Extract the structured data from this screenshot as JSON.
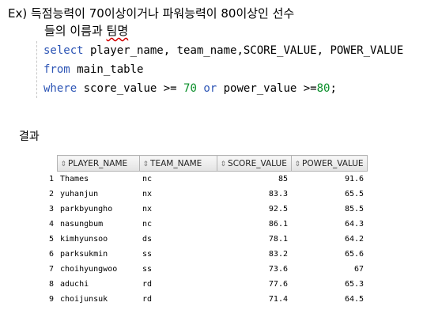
{
  "title": {
    "line1": "Ex) 득점능력이 70이상이거나 파워능력이 80이상인 선수",
    "line2_pre": "들의 이름과 ",
    "line2_underlined": "팀명"
  },
  "query": {
    "select_kw": "select",
    "select_cols": " player_name, team_name,SCORE_VALUE, POWER_VALUE",
    "from_kw": "from",
    "from_table": " main_table",
    "where_kw": "where",
    "where_part1": " score_value >= ",
    "where_num1": "70",
    "or_kw": "or",
    "where_part2": " power_value >=",
    "where_num2": "80",
    "where_end": ";"
  },
  "result_label": "결과",
  "table": {
    "sort_icon": "sort-icon",
    "columns": [
      "PLAYER_NAME",
      "TEAM_NAME",
      "SCORE_VALUE",
      "POWER_VALUE"
    ],
    "rows": [
      {
        "n": "1",
        "player": "Thames",
        "team": "nc",
        "score": "85",
        "power": "91.6"
      },
      {
        "n": "2",
        "player": "yuhanjun",
        "team": "nx",
        "score": "83.3",
        "power": "65.5"
      },
      {
        "n": "3",
        "player": "parkbyungho",
        "team": "nx",
        "score": "92.5",
        "power": "85.5"
      },
      {
        "n": "4",
        "player": "nasungbum",
        "team": "nc",
        "score": "86.1",
        "power": "64.3"
      },
      {
        "n": "5",
        "player": "kimhyunsoo",
        "team": "ds",
        "score": "78.1",
        "power": "64.2"
      },
      {
        "n": "6",
        "player": "parksukmin",
        "team": "ss",
        "score": "83.2",
        "power": "65.6"
      },
      {
        "n": "7",
        "player": "choihyungwoo",
        "team": "ss",
        "score": "73.6",
        "power": "67"
      },
      {
        "n": "8",
        "player": "aduchi",
        "team": "rd",
        "score": "77.6",
        "power": "65.3"
      },
      {
        "n": "9",
        "player": "choijunsuk",
        "team": "rd",
        "score": "71.4",
        "power": "64.5"
      }
    ]
  }
}
